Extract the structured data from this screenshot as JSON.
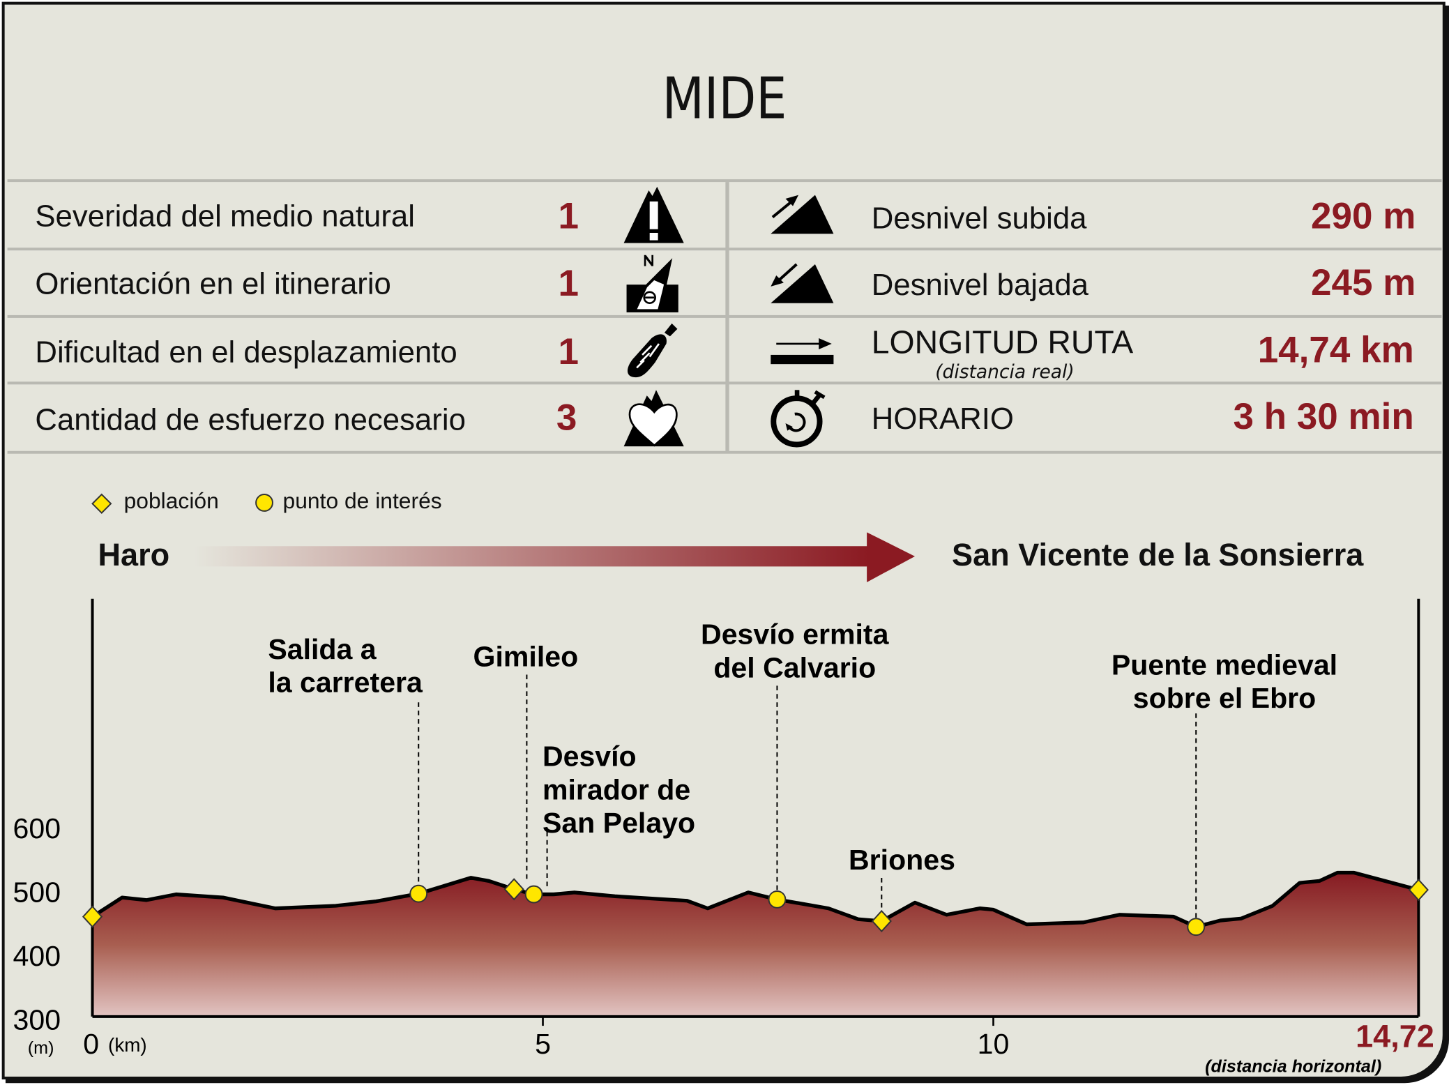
{
  "title": "MIDE",
  "mide": [
    {
      "label": "Severidad del medio natural",
      "value": "1",
      "icon": "mountain-warning-icon"
    },
    {
      "label": "Orientación en el itinerario",
      "value": "1",
      "icon": "compass-icon"
    },
    {
      "label": "Dificultad en el desplazamiento",
      "value": "1",
      "icon": "footprint-icon"
    },
    {
      "label": "Cantidad de esfuerzo necesario",
      "value": "3",
      "icon": "heart-mountain-icon"
    }
  ],
  "stats": [
    {
      "label": "Desnivel subida",
      "value": "290 m",
      "icon": "ascent-icon"
    },
    {
      "label": "Desnivel bajada",
      "value": "245 m",
      "icon": "descent-icon"
    },
    {
      "label": "LONGITUD RUTA",
      "sublabel": "(distancia real)",
      "value": "14,74 km",
      "icon": "distance-icon"
    },
    {
      "label": "HORARIO",
      "value": "3 h 30 min",
      "icon": "stopwatch-icon"
    }
  ],
  "legend": {
    "town": "población",
    "poi": "punto de interés"
  },
  "route": {
    "start": "Haro",
    "end": "San Vicente de la Sonsierra"
  },
  "colors": {
    "accent": "#8b1a22",
    "marker": "#ffe600",
    "background": "#e5e5dc"
  },
  "chart_data": {
    "type": "area",
    "xlabel": "(km)",
    "ylabel": "(m)",
    "xlim": [
      0,
      14.72
    ],
    "ylim": [
      300,
      600
    ],
    "xticks": [
      "0",
      "5",
      "10"
    ],
    "yticks": [
      "600",
      "500",
      "400",
      "300"
    ],
    "end_label": "14,72",
    "end_sublabel": "(distancia horizontal)",
    "x": [
      0,
      0.33,
      0.6,
      0.93,
      1.45,
      2.03,
      2.7,
      3.15,
      3.62,
      4.2,
      4.4,
      4.68,
      4.9,
      5.12,
      5.35,
      5.8,
      6.6,
      6.83,
      7.28,
      7.6,
      8.17,
      8.5,
      8.76,
      9.13,
      9.48,
      9.85,
      10.0,
      10.37,
      11.0,
      11.4,
      12.0,
      12.25,
      12.52,
      12.75,
      13.1,
      13.4,
      13.62,
      13.82,
      14.0,
      14.72
    ],
    "y": [
      461,
      491,
      487,
      496,
      491,
      474,
      478,
      485,
      497,
      522,
      517,
      504,
      496,
      496,
      499,
      493,
      486,
      474,
      499,
      488,
      474,
      457,
      454,
      483,
      464,
      474,
      472,
      449,
      452,
      464,
      461,
      445,
      455,
      458,
      478,
      514,
      517,
      530,
      530,
      503
    ],
    "points": [
      {
        "name": "Haro",
        "km": 0,
        "elev": 461,
        "kind": "town"
      },
      {
        "name": "Salida a la carretera",
        "lines": [
          "Salida a",
          "la carretera"
        ],
        "km": 3.62,
        "elev": 497,
        "kind": "poi"
      },
      {
        "name": "Gimileo",
        "lines": [
          "Gimileo"
        ],
        "km": 4.68,
        "elev": 504,
        "kind": "town"
      },
      {
        "name": "Desvío mirador de San Pelayo",
        "lines": [
          "Desvío",
          "mirador de",
          "San Pelayo"
        ],
        "km": 4.9,
        "elev": 496,
        "kind": "poi"
      },
      {
        "name": "Desvío ermita del Calvario",
        "lines": [
          "Desvío ermita",
          "del Calvario"
        ],
        "km": 7.6,
        "elev": 488,
        "kind": "poi"
      },
      {
        "name": "Briones",
        "lines": [
          "Briones"
        ],
        "km": 8.76,
        "elev": 454,
        "kind": "town"
      },
      {
        "name": "Puente medieval sobre el Ebro",
        "lines": [
          "Puente medieval",
          "sobre el Ebro"
        ],
        "km": 12.25,
        "elev": 445,
        "kind": "poi"
      },
      {
        "name": "San Vicente de la Sonsierra",
        "km": 14.72,
        "elev": 503,
        "kind": "town"
      }
    ]
  }
}
